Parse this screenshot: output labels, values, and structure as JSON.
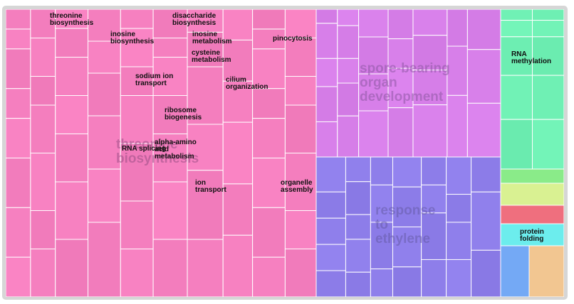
{
  "chart_data": {
    "type": "treemap",
    "title": "",
    "groups": [
      {
        "name": "threonine biosynthesis",
        "color": "#f57fbf",
        "label_color": "#9c4f86",
        "leaves": [
          "threonine biosynthesis",
          "disaccharide biosynthesis",
          "inosine biosynthesis",
          "inosine metabolism",
          "pinocytosis",
          "cysteine metabolism",
          "sodium ion transport",
          "cilium organization",
          "ribosome biogenesis",
          "RNA splicing",
          "alpha-amino acid metabolism",
          "ion transport",
          "organelle assembly"
        ]
      },
      {
        "name": "spore-bearing organ development",
        "color": "#d77fe9",
        "label_color": "#8e58a4",
        "leaves": []
      },
      {
        "name": "response to ethylene",
        "color": "#8e7eea",
        "label_color": "#675ca8",
        "leaves": []
      },
      {
        "name": "",
        "color": "#6ff0b4",
        "label_color": "#333333",
        "leaves": [
          "RNA methylation"
        ]
      },
      {
        "name": "",
        "color": "#8ff08e",
        "label_color": "#333333",
        "leaves": []
      },
      {
        "name": "",
        "color": "#d6ee8f",
        "label_color": "#333333",
        "leaves": []
      },
      {
        "name": "",
        "color": "#ef6f7e",
        "label_color": "#333333",
        "leaves": []
      },
      {
        "name": "",
        "color": "#6ff0f0",
        "label_color": "#333333",
        "leaves": [
          "protein folding"
        ]
      },
      {
        "name": "",
        "color": "#6fa4f0",
        "label_color": "#333333",
        "leaves": []
      },
      {
        "name": "",
        "color": "#f0c48f",
        "label_color": "#333333",
        "leaves": []
      }
    ]
  }
}
